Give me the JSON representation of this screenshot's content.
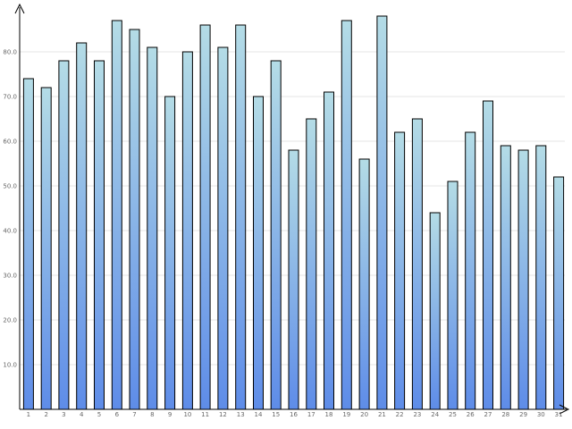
{
  "chart_data": {
    "type": "bar",
    "title": "",
    "xlabel": "",
    "ylabel": "",
    "categories": [
      "1",
      "2",
      "3",
      "4",
      "5",
      "6",
      "7",
      "8",
      "9",
      "10",
      "11",
      "12",
      "13",
      "14",
      "15",
      "16",
      "17",
      "18",
      "19",
      "20",
      "21",
      "22",
      "23",
      "24",
      "25",
      "26",
      "27",
      "28",
      "29",
      "30",
      "31"
    ],
    "values": [
      74,
      72,
      78,
      82,
      78,
      87,
      85,
      81,
      70,
      80,
      86,
      81,
      86,
      70,
      78,
      58,
      65,
      71,
      87,
      56,
      88,
      62,
      65,
      44,
      51,
      62,
      69,
      59,
      58,
      59,
      52
    ],
    "yticks": [
      10,
      20,
      30,
      40,
      50,
      60,
      70,
      80
    ],
    "ytick_labels": [
      "10.0",
      "20.0",
      "30.0",
      "40.0",
      "50.0",
      "60.0",
      "70.0",
      "80.0"
    ],
    "ylim": [
      0,
      90
    ],
    "grid": true,
    "legend": "none",
    "colors": {
      "bar_top": "#b4dce6",
      "bar_bottom": "#5e8ce8",
      "bar_stroke": "#000000",
      "grid": "#e4e4e4",
      "axis": "#000000",
      "tick_text": "#666666"
    }
  }
}
